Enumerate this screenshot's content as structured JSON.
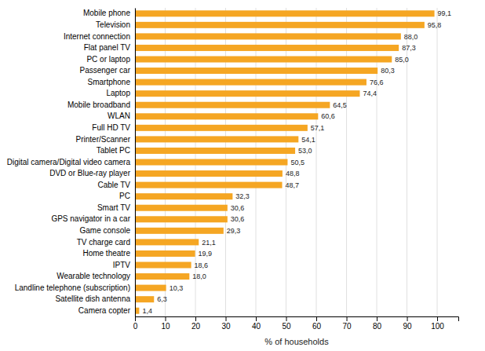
{
  "chart_data": {
    "type": "bar",
    "orientation": "horizontal",
    "categories": [
      "Camera copter",
      "Satellite dish antenna",
      "Landline telephone (subscription)",
      "Wearable technology",
      "IPTV",
      "Home theatre",
      "TV charge card",
      "Game console",
      "GPS navigator in a car",
      "Smart TV",
      "PC",
      "Cable TV",
      "DVD or Blue-ray player",
      "Digital camera/Digital video camera",
      "Tablet PC",
      "Printer/Scanner",
      "Full HD TV",
      "WLAN",
      "Mobile broadband",
      "Laptop",
      "Smartphone",
      "Passenger car",
      "PC or laptop",
      "Flat panel TV",
      "Internet connection",
      "Television",
      "Mobile phone"
    ],
    "values": [
      1.4,
      6.3,
      10.3,
      18.0,
      18.6,
      19.9,
      21.1,
      29.3,
      30.6,
      30.6,
      32.3,
      48.7,
      48.8,
      50.5,
      53.0,
      54.1,
      57.1,
      60.6,
      64.5,
      74.4,
      76.6,
      80.3,
      85.0,
      87.3,
      88.0,
      95.8,
      99.1
    ],
    "value_labels": [
      "1,4",
      "6,3",
      "10,3",
      "18,0",
      "18,6",
      "19,9",
      "21,1",
      "29,3",
      "30,6",
      "30,6",
      "32,3",
      "48,7",
      "48,8",
      "50,5",
      "53,0",
      "54,1",
      "57,1",
      "60,6",
      "64,5",
      "74,4",
      "76,6",
      "80,3",
      "85,0",
      "87,3",
      "88,0",
      "95,8",
      "99,1"
    ],
    "data_labels": true,
    "color": "#f5a623",
    "xlabel": "% of households",
    "xlim": [
      0,
      107
    ],
    "xticks": [
      0,
      10,
      20,
      30,
      40,
      50,
      60,
      70,
      80,
      90,
      100
    ],
    "grid": true
  }
}
